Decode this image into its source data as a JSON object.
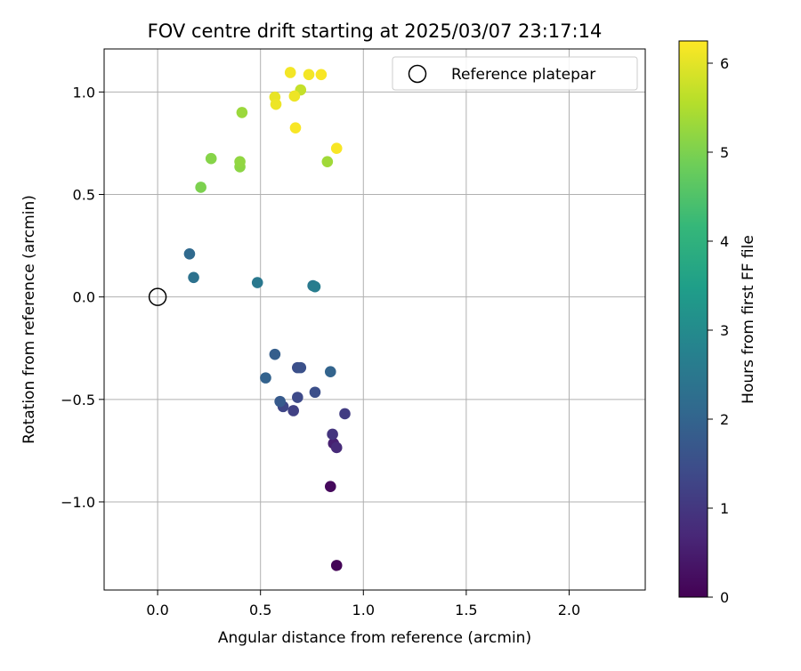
{
  "chart_data": {
    "type": "scatter",
    "title": "FOV centre drift starting at 2025/03/07 23:17:14",
    "xlabel": "Angular distance from reference (arcmin)",
    "ylabel": "Rotation from reference (arcmin)",
    "xlim": [
      -0.26,
      2.37
    ],
    "ylim": [
      -1.43,
      1.21
    ],
    "xticks": [
      0.0,
      0.5,
      1.0,
      1.5,
      2.0
    ],
    "xtick_labels": [
      "0.0",
      "0.5",
      "1.0",
      "1.5",
      "2.0"
    ],
    "yticks": [
      -1.0,
      -0.5,
      0.0,
      0.5,
      1.0
    ],
    "ytick_labels": [
      "−1.0",
      "−0.5",
      "0.0",
      "0.5",
      "1.0"
    ],
    "grid": true,
    "legend": {
      "position": "top-right",
      "entries": [
        {
          "label": "Reference platepar",
          "marker": "open-circle",
          "color": "#000000"
        }
      ]
    },
    "reference_point": {
      "x": 0.0,
      "y": 0.0
    },
    "colorbar": {
      "label": "Hours from first FF file",
      "min": 0.0,
      "max": 6.25,
      "ticks": [
        0,
        1,
        2,
        3,
        4,
        5,
        6
      ],
      "tick_labels": [
        "0",
        "1",
        "2",
        "3",
        "4",
        "5",
        "6"
      ],
      "colormap": "viridis",
      "colormap_stops": [
        "#440154",
        "#482878",
        "#3e4a89",
        "#31688e",
        "#26828e",
        "#1f9e89",
        "#35b779",
        "#6ece58",
        "#b5de2b",
        "#fde725"
      ]
    },
    "points": [
      {
        "x": 0.87,
        "y": -1.31,
        "hours": 0.05
      },
      {
        "x": 0.84,
        "y": -0.925,
        "hours": 0.15
      },
      {
        "x": 0.855,
        "y": -0.715,
        "hours": 0.55
      },
      {
        "x": 0.87,
        "y": -0.735,
        "hours": 0.75
      },
      {
        "x": 0.85,
        "y": -0.67,
        "hours": 0.95
      },
      {
        "x": 0.91,
        "y": -0.57,
        "hours": 1.1
      },
      {
        "x": 0.66,
        "y": -0.555,
        "hours": 1.2
      },
      {
        "x": 0.61,
        "y": -0.535,
        "hours": 1.3
      },
      {
        "x": 0.68,
        "y": -0.49,
        "hours": 1.4
      },
      {
        "x": 0.765,
        "y": -0.465,
        "hours": 1.5
      },
      {
        "x": 0.68,
        "y": -0.345,
        "hours": 1.5
      },
      {
        "x": 0.695,
        "y": -0.345,
        "hours": 1.55
      },
      {
        "x": 0.595,
        "y": -0.51,
        "hours": 1.75
      },
      {
        "x": 0.57,
        "y": -0.28,
        "hours": 1.85
      },
      {
        "x": 0.525,
        "y": -0.395,
        "hours": 1.95
      },
      {
        "x": 0.84,
        "y": -0.365,
        "hours": 2.0
      },
      {
        "x": 0.155,
        "y": 0.21,
        "hours": 2.15
      },
      {
        "x": 0.175,
        "y": 0.095,
        "hours": 2.35
      },
      {
        "x": 0.485,
        "y": 0.07,
        "hours": 2.5
      },
      {
        "x": 0.755,
        "y": 0.055,
        "hours": 2.55
      },
      {
        "x": 0.765,
        "y": 0.05,
        "hours": 2.65
      },
      {
        "x": 0.21,
        "y": 0.535,
        "hours": 5.0
      },
      {
        "x": 0.26,
        "y": 0.675,
        "hours": 5.1
      },
      {
        "x": 0.4,
        "y": 0.635,
        "hours": 5.15
      },
      {
        "x": 0.4,
        "y": 0.66,
        "hours": 5.2
      },
      {
        "x": 0.41,
        "y": 0.9,
        "hours": 5.3
      },
      {
        "x": 0.825,
        "y": 0.66,
        "hours": 5.35
      },
      {
        "x": 0.695,
        "y": 1.01,
        "hours": 5.7
      },
      {
        "x": 0.57,
        "y": 0.975,
        "hours": 6.05
      },
      {
        "x": 0.575,
        "y": 0.94,
        "hours": 6.1
      },
      {
        "x": 0.665,
        "y": 0.98,
        "hours": 6.1
      },
      {
        "x": 0.645,
        "y": 1.095,
        "hours": 6.15
      },
      {
        "x": 0.735,
        "y": 1.085,
        "hours": 6.15
      },
      {
        "x": 0.795,
        "y": 1.085,
        "hours": 6.2
      },
      {
        "x": 0.67,
        "y": 0.825,
        "hours": 6.2
      },
      {
        "x": 0.87,
        "y": 0.725,
        "hours": 6.2
      }
    ]
  }
}
